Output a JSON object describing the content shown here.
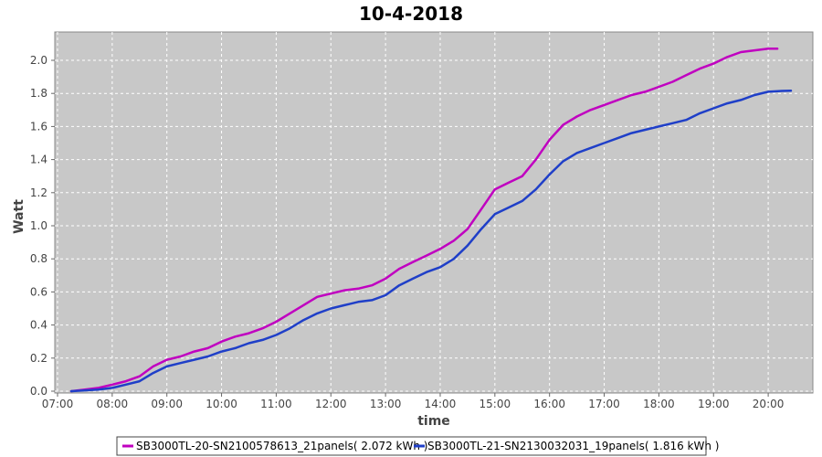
{
  "chart_data": {
    "type": "line",
    "title": "10-4-2018",
    "xlabel": "time",
    "ylabel": "Watt",
    "xlim": [
      "07:00",
      "20:40"
    ],
    "ylim": [
      0.0,
      2.2
    ],
    "x_ticks": [
      "07:00",
      "08:00",
      "09:00",
      "10:00",
      "11:00",
      "12:00",
      "13:00",
      "14:00",
      "15:00",
      "16:00",
      "17:00",
      "18:00",
      "19:00",
      "20:00"
    ],
    "y_ticks": [
      "0.0",
      "0.2",
      "0.4",
      "0.6",
      "0.8",
      "1.0",
      "1.2",
      "1.4",
      "1.6",
      "1.8",
      "2.0"
    ],
    "grid": true,
    "legend_position": "bottom",
    "plot_background": "#c8c8c8",
    "series": [
      {
        "name": "SB3000TL-20-SN2100578613_21panels( 2.072 kWh )",
        "color": "#c000c0",
        "x": [
          "07:15",
          "07:30",
          "07:45",
          "08:00",
          "08:15",
          "08:30",
          "08:45",
          "09:00",
          "09:15",
          "09:30",
          "09:45",
          "10:00",
          "10:15",
          "10:30",
          "10:45",
          "11:00",
          "11:15",
          "11:30",
          "11:45",
          "12:00",
          "12:15",
          "12:30",
          "12:45",
          "13:00",
          "13:15",
          "13:30",
          "13:45",
          "14:00",
          "14:15",
          "14:30",
          "14:45",
          "15:00",
          "15:15",
          "15:30",
          "15:45",
          "16:00",
          "16:15",
          "16:30",
          "16:45",
          "17:00",
          "17:15",
          "17:30",
          "17:45",
          "18:00",
          "18:15",
          "18:30",
          "18:45",
          "19:00",
          "19:15",
          "19:30",
          "19:45",
          "20:00",
          "20:10"
        ],
        "y": [
          0.0,
          0.01,
          0.02,
          0.04,
          0.06,
          0.09,
          0.15,
          0.19,
          0.21,
          0.24,
          0.26,
          0.3,
          0.33,
          0.35,
          0.38,
          0.42,
          0.47,
          0.52,
          0.57,
          0.59,
          0.61,
          0.62,
          0.64,
          0.68,
          0.74,
          0.78,
          0.82,
          0.86,
          0.91,
          0.98,
          1.1,
          1.22,
          1.26,
          1.3,
          1.4,
          1.52,
          1.61,
          1.66,
          1.7,
          1.73,
          1.76,
          1.79,
          1.81,
          1.84,
          1.87,
          1.91,
          1.95,
          1.98,
          2.02,
          2.05,
          2.06,
          2.07,
          2.07
        ]
      },
      {
        "name": "SB3000TL-21-SN2130032031_19panels( 1.816 kWh )",
        "color": "#1f3fc8",
        "x": [
          "07:15",
          "07:30",
          "07:45",
          "08:00",
          "08:15",
          "08:30",
          "08:45",
          "09:00",
          "09:15",
          "09:30",
          "09:45",
          "10:00",
          "10:15",
          "10:30",
          "10:45",
          "11:00",
          "11:15",
          "11:30",
          "11:45",
          "12:00",
          "12:15",
          "12:30",
          "12:45",
          "13:00",
          "13:15",
          "13:30",
          "13:45",
          "14:00",
          "14:15",
          "14:30",
          "14:45",
          "15:00",
          "15:15",
          "15:30",
          "15:45",
          "16:00",
          "16:15",
          "16:30",
          "16:45",
          "17:00",
          "17:15",
          "17:30",
          "17:45",
          "18:00",
          "18:15",
          "18:30",
          "18:45",
          "19:00",
          "19:15",
          "19:30",
          "19:45",
          "20:00",
          "20:15",
          "20:25"
        ],
        "y": [
          0.0,
          0.005,
          0.01,
          0.02,
          0.04,
          0.06,
          0.11,
          0.15,
          0.17,
          0.19,
          0.21,
          0.24,
          0.26,
          0.29,
          0.31,
          0.34,
          0.38,
          0.43,
          0.47,
          0.5,
          0.52,
          0.54,
          0.55,
          0.58,
          0.64,
          0.68,
          0.72,
          0.75,
          0.8,
          0.88,
          0.98,
          1.07,
          1.11,
          1.15,
          1.22,
          1.31,
          1.39,
          1.44,
          1.47,
          1.5,
          1.53,
          1.56,
          1.58,
          1.6,
          1.62,
          1.64,
          1.68,
          1.71,
          1.74,
          1.76,
          1.79,
          1.81,
          1.815,
          1.816
        ]
      }
    ]
  }
}
